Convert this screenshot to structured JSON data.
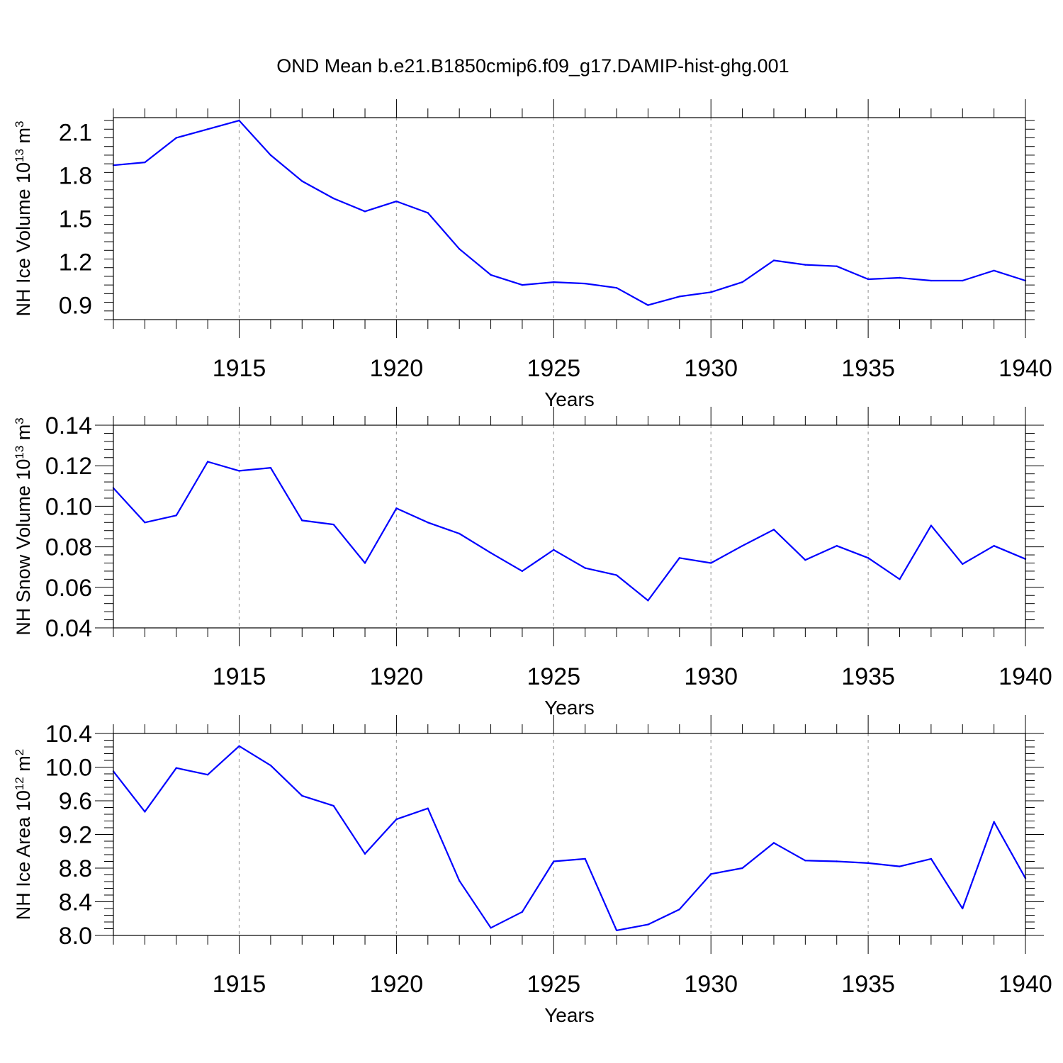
{
  "title": "OND Mean b.e21.B1850cmip6.f09_g17.DAMIP-hist-ghg.001",
  "line_color": "#0000ff",
  "grid_color": "#a0a0a0",
  "chart_data": [
    {
      "type": "line",
      "ylabel_main": "NH Ice Volume 10",
      "ylabel_exp": "13",
      "ylabel_unit_prefix": " m",
      "ylabel_unit_exp": "3",
      "xlabel": "Years",
      "xlim": [
        1911,
        1940
      ],
      "ylim": [
        0.8,
        2.2
      ],
      "yticks": [
        "0.9",
        "1.2",
        "1.5",
        "1.8",
        "2.1"
      ],
      "xticks": [
        "1915",
        "1920",
        "1925",
        "1930",
        "1935",
        "1940"
      ],
      "grid": "vertical dashed at major x ticks",
      "x": [
        1911,
        1912,
        1913,
        1914,
        1915,
        1916,
        1917,
        1918,
        1919,
        1920,
        1921,
        1922,
        1923,
        1924,
        1925,
        1926,
        1927,
        1928,
        1929,
        1930,
        1931,
        1932,
        1933,
        1934,
        1935,
        1936,
        1937,
        1938,
        1939,
        1940
      ],
      "values": [
        1.87,
        1.89,
        2.06,
        2.12,
        2.18,
        1.94,
        1.76,
        1.64,
        1.55,
        1.62,
        1.54,
        1.29,
        1.11,
        1.04,
        1.06,
        1.05,
        1.02,
        0.9,
        0.96,
        0.99,
        1.06,
        1.21,
        1.18,
        1.17,
        1.08,
        1.09,
        1.07,
        1.07,
        1.14,
        1.07
      ]
    },
    {
      "type": "line",
      "ylabel_main": "NH Snow Volume 10",
      "ylabel_exp": "13",
      "ylabel_unit_prefix": " m",
      "ylabel_unit_exp": "3",
      "xlabel": "Years",
      "xlim": [
        1911,
        1940
      ],
      "ylim": [
        0.04,
        0.14
      ],
      "yticks": [
        "0.04",
        "0.06",
        "0.08",
        "0.10",
        "0.12",
        "0.14"
      ],
      "xticks": [
        "1915",
        "1920",
        "1925",
        "1930",
        "1935",
        "1940"
      ],
      "grid": "vertical dashed at major x ticks",
      "x": [
        1911,
        1912,
        1913,
        1914,
        1915,
        1916,
        1917,
        1918,
        1919,
        1920,
        1921,
        1922,
        1923,
        1924,
        1925,
        1926,
        1927,
        1928,
        1929,
        1930,
        1931,
        1932,
        1933,
        1934,
        1935,
        1936,
        1937,
        1938,
        1939,
        1940
      ],
      "values": [
        0.109,
        0.092,
        0.0955,
        0.122,
        0.1175,
        0.119,
        0.093,
        0.091,
        0.072,
        0.099,
        0.092,
        0.0865,
        0.077,
        0.068,
        0.0785,
        0.0695,
        0.066,
        0.0535,
        0.0745,
        0.072,
        0.0805,
        0.0885,
        0.0735,
        0.0805,
        0.0745,
        0.064,
        0.0905,
        0.0715,
        0.0805,
        0.074
      ]
    },
    {
      "type": "line",
      "ylabel_main": "NH Ice Area 10",
      "ylabel_exp": "12",
      "ylabel_unit_prefix": " m",
      "ylabel_unit_exp": "2",
      "xlabel": "Years",
      "xlim": [
        1911,
        1940
      ],
      "ylim": [
        8.0,
        10.4
      ],
      "yticks": [
        "8.0",
        "8.4",
        "8.8",
        "9.2",
        "9.6",
        "10.0",
        "10.4"
      ],
      "xticks": [
        "1915",
        "1920",
        "1925",
        "1930",
        "1935",
        "1940"
      ],
      "grid": "vertical dashed at major x ticks",
      "x": [
        1911,
        1912,
        1913,
        1914,
        1915,
        1916,
        1917,
        1918,
        1919,
        1920,
        1921,
        1922,
        1923,
        1924,
        1925,
        1926,
        1927,
        1928,
        1929,
        1930,
        1931,
        1932,
        1933,
        1934,
        1935,
        1936,
        1937,
        1938,
        1939,
        1940
      ],
      "values": [
        9.95,
        9.47,
        9.99,
        9.91,
        10.25,
        10.02,
        9.66,
        9.54,
        8.97,
        9.38,
        9.51,
        8.65,
        8.09,
        8.28,
        8.88,
        8.91,
        8.06,
        8.13,
        8.31,
        8.73,
        8.8,
        9.1,
        8.89,
        8.88,
        8.86,
        8.82,
        8.91,
        8.32,
        9.35,
        8.68
      ]
    }
  ]
}
